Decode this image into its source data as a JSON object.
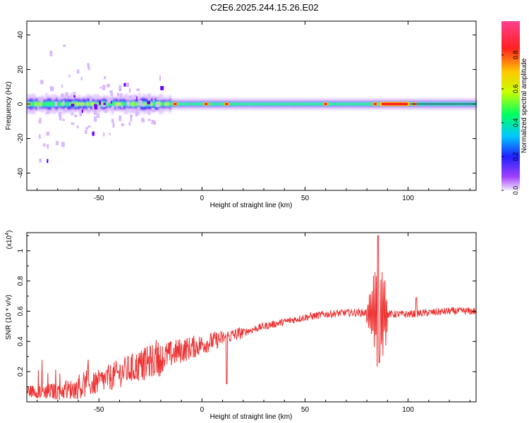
{
  "title": "C2E6.2025.244.15.26.E02",
  "chart_data": [
    {
      "type": "heatmap",
      "xlabel": "Height of straight line (km)",
      "ylabel": "Frequency (Hz)",
      "xlim": [
        -85,
        133
      ],
      "ylim": [
        -50,
        48
      ],
      "xticks": [
        -50,
        0,
        50,
        100
      ],
      "yticks": [
        40,
        20,
        0,
        -20,
        -40
      ],
      "ytick_labels": [
        "40",
        "20",
        "0",
        "-20",
        "-40"
      ],
      "colorbar": {
        "label": "Normalized spectral amplitude",
        "range": [
          0,
          1
        ],
        "ticks": [
          0.0,
          0.2,
          0.4,
          0.6,
          0.8
        ],
        "tick_labels": [
          "0.0",
          "0.2",
          "0.4",
          "0.6",
          "0.8"
        ],
        "colormap": [
          "#d9b3ff",
          "#8000ff",
          "#2020ff",
          "#00c8ff",
          "#00ff40",
          "#c8ff00",
          "#ffc800",
          "#ff2020",
          "#ff60a0"
        ]
      },
      "ridge": {
        "description_free": true,
        "center_hz": 0,
        "hot_spots_km": [
          -13,
          2,
          12,
          60,
          84,
          93,
          97,
          103
        ],
        "strong_segment_km": [
          86,
          101
        ]
      }
    },
    {
      "type": "line",
      "xlabel": "Height of straight line (km)",
      "ylabel": "SNR (10 * v/v)",
      "multiplier": "(x10^4)",
      "xlim": [
        -85,
        133
      ],
      "ylim": [
        0.0,
        1.12
      ],
      "xticks": [
        -50,
        0,
        50,
        100
      ],
      "yticks": [
        0.2,
        0.4,
        0.6,
        0.8,
        1.0
      ],
      "ytick_labels": [
        "0.2",
        "0.4",
        "0.6",
        "0.8",
        "1"
      ],
      "color": "#ee3333",
      "trend": {
        "x": [
          -85,
          -70,
          -60,
          -50,
          -40,
          -30,
          -20,
          -10,
          0,
          10,
          20,
          30,
          40,
          50,
          60,
          70,
          80,
          90,
          100,
          110,
          120,
          133
        ],
        "y": [
          0.07,
          0.07,
          0.09,
          0.13,
          0.19,
          0.24,
          0.29,
          0.34,
          0.38,
          0.42,
          0.46,
          0.5,
          0.53,
          0.56,
          0.58,
          0.59,
          0.59,
          0.58,
          0.58,
          0.59,
          0.6,
          0.6
        ]
      },
      "features": [
        {
          "x": 12,
          "y": 0.12
        },
        {
          "x": 85.5,
          "y": 1.1
        },
        {
          "x": 86,
          "y": 0.26
        },
        {
          "x": 104,
          "y": 0.41
        },
        {
          "x": 104,
          "y": 0.69
        }
      ]
    }
  ]
}
